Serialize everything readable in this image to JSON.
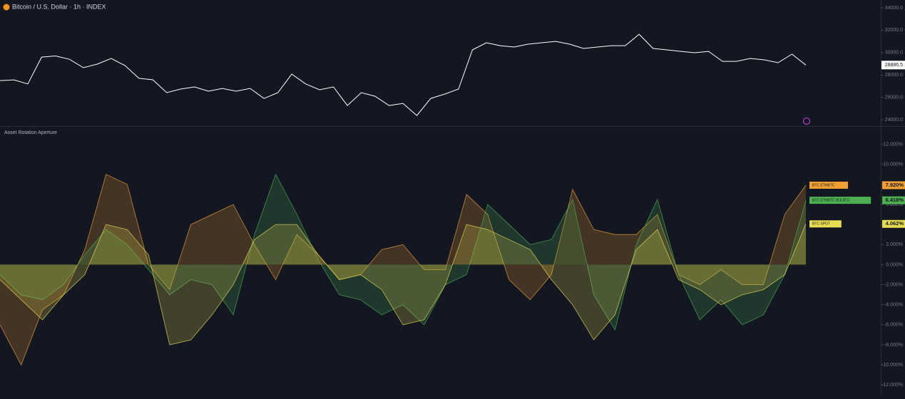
{
  "chart_data": [
    {
      "type": "line",
      "title": "Bitcoin / U.S. Dollar · 1h · INDEX",
      "color": "#ffffff",
      "values": [
        27500,
        27560,
        27200,
        29600,
        29700,
        29400,
        28650,
        28970,
        29480,
        28840,
        27700,
        27570,
        26420,
        26740,
        26930,
        26550,
        26800,
        26550,
        26800,
        25900,
        26420,
        28080,
        27200,
        26680,
        26930,
        25270,
        26420,
        26100,
        25270,
        25460,
        24380,
        25910,
        26290,
        26740,
        30240,
        30880,
        30620,
        30500,
        30750,
        30880,
        31000,
        30750,
        30370,
        30500,
        30620,
        30620,
        31640,
        30370,
        30240,
        30110,
        29990,
        30110,
        29220,
        29220,
        29480,
        29350,
        29100,
        29860,
        28886.5
      ],
      "current_value": 28886.5,
      "ylim": [
        23430,
        34700
      ],
      "yticks": [
        {
          "value": 24000,
          "label": "24000.0"
        },
        {
          "value": 26000,
          "label": "26000.0"
        },
        {
          "value": 28000,
          "label": "28000.0"
        },
        {
          "value": 30000,
          "label": "30000.0"
        },
        {
          "value": 32000,
          "label": "32000.0"
        },
        {
          "value": 34000,
          "label": "34000.0"
        }
      ]
    },
    {
      "type": "area",
      "title": "Asset Rotation Aperture",
      "series": [
        {
          "name": "BTC ETHBTC",
          "color": "#f0a030",
          "value_label": "7.920%",
          "values": [
            -6,
            -10,
            -4.5,
            -3,
            1.5,
            9,
            8,
            0,
            -2.5,
            4,
            5,
            6,
            2,
            -1.5,
            3,
            1,
            -1.5,
            -1,
            1.5,
            2,
            -0.5,
            -0.5,
            7,
            5,
            -1.5,
            -3.5,
            -1,
            7.5,
            3.5,
            3,
            3,
            5,
            -1,
            -2,
            -0.5,
            -2,
            -2,
            5,
            7.92
          ]
        },
        {
          "name": "BTC ETHBTC SOLBTC",
          "color": "#4caf50",
          "value_label": "6.418%",
          "values": [
            -1,
            -3,
            -3.5,
            -2,
            1,
            3.5,
            2,
            -0.5,
            -3,
            -1.5,
            -2,
            -5,
            3,
            9,
            5,
            0.5,
            -3,
            -3.5,
            -5,
            -4,
            -6,
            -2,
            -1,
            6,
            4,
            2,
            2.5,
            6.5,
            -3,
            -6.5,
            2,
            6.5,
            -1,
            -5.5,
            -3.5,
            -6,
            -5,
            -1,
            6.418
          ]
        },
        {
          "name": "BTC SPOT",
          "color": "#e8dc50",
          "value_label": "4.062%",
          "values": [
            -1.5,
            -3.5,
            -5.5,
            -3,
            -1,
            4,
            3.5,
            1,
            -8,
            -7.5,
            -5,
            -2,
            2.5,
            4,
            4,
            1,
            -1.5,
            -1,
            -2.5,
            -6,
            -5.5,
            -2,
            4,
            3.5,
            2.5,
            1.5,
            -1.5,
            -4,
            -7.5,
            -5,
            1.5,
            3.5,
            -1.5,
            -2.5,
            -4,
            -3,
            -2.5,
            -1,
            4.062
          ]
        }
      ],
      "ylim": [
        -12.9,
        13.6
      ],
      "yticks": [
        {
          "value": -12,
          "label": "-12.000%"
        },
        {
          "value": -10,
          "label": "-10.000%"
        },
        {
          "value": -8,
          "label": "-8.000%"
        },
        {
          "value": -6,
          "label": "-6.000%"
        },
        {
          "value": -4,
          "label": "-4.000%"
        },
        {
          "value": -2,
          "label": "-2.000%"
        },
        {
          "value": 0,
          "label": "0.000%"
        },
        {
          "value": 2,
          "label": "2.000%"
        },
        {
          "value": 4,
          "label": "4.000%"
        },
        {
          "value": 6,
          "label": "6.000%"
        },
        {
          "value": 8,
          "label": "8.000%"
        },
        {
          "value": 10,
          "label": "10.000%"
        },
        {
          "value": 12,
          "label": "12.000%"
        }
      ]
    }
  ]
}
